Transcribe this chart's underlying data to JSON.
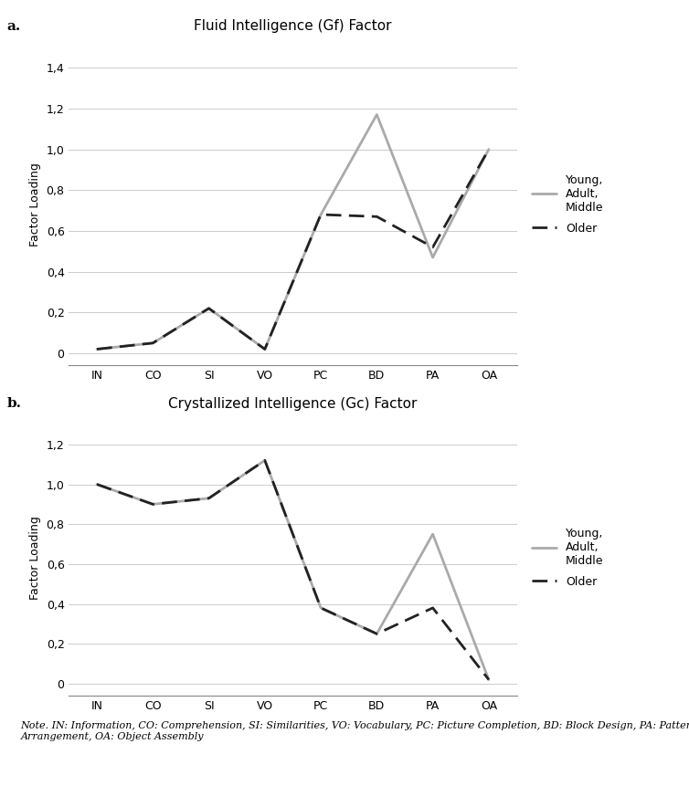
{
  "categories": [
    "IN",
    "CO",
    "SI",
    "VO",
    "PC",
    "BD",
    "PA",
    "OA"
  ],
  "gf_young_adult_middle": [
    0.02,
    0.05,
    0.22,
    0.02,
    0.68,
    1.17,
    0.47,
    1.0
  ],
  "gf_older": [
    0.02,
    0.05,
    0.22,
    0.02,
    0.68,
    0.67,
    0.52,
    1.0
  ],
  "gc_young_adult_middle": [
    1.0,
    0.9,
    0.93,
    1.12,
    0.38,
    0.25,
    0.75,
    0.02
  ],
  "gc_older": [
    1.0,
    0.9,
    0.93,
    1.12,
    0.38,
    0.25,
    0.38,
    0.02
  ],
  "title_gf": "Fluid Intelligence (Gf) Factor",
  "title_gc": "Crystallized Intelligence (Gc) Factor",
  "ylabel": "Factor Loading",
  "young_color": "#aaaaaa",
  "older_color": "#222222",
  "yticks_gf": [
    0,
    0.2,
    0.4,
    0.6,
    0.8,
    1.0,
    1.2,
    1.4
  ],
  "yticks_gc": [
    0,
    0.2,
    0.4,
    0.6,
    0.8,
    1.0,
    1.2
  ],
  "ylim_gf": [
    -0.06,
    1.52
  ],
  "ylim_gc": [
    -0.06,
    1.32
  ],
  "legend_young_label": "Young,\nAdult,\nMiddle",
  "legend_older_label": "Older",
  "note_text": "Note. IN: Information, CO: Comprehension, SI: Similarities, VO: Vocabulary, PC: Picture Completion, BD: Block Design, PA: Pattern\nArrangement, OA: Object Assembly",
  "label_a": "a.",
  "label_b": "b.",
  "line_width": 2.0,
  "title_fontsize": 11,
  "tick_fontsize": 9,
  "ylabel_fontsize": 9,
  "legend_fontsize": 9,
  "note_fontsize": 8
}
